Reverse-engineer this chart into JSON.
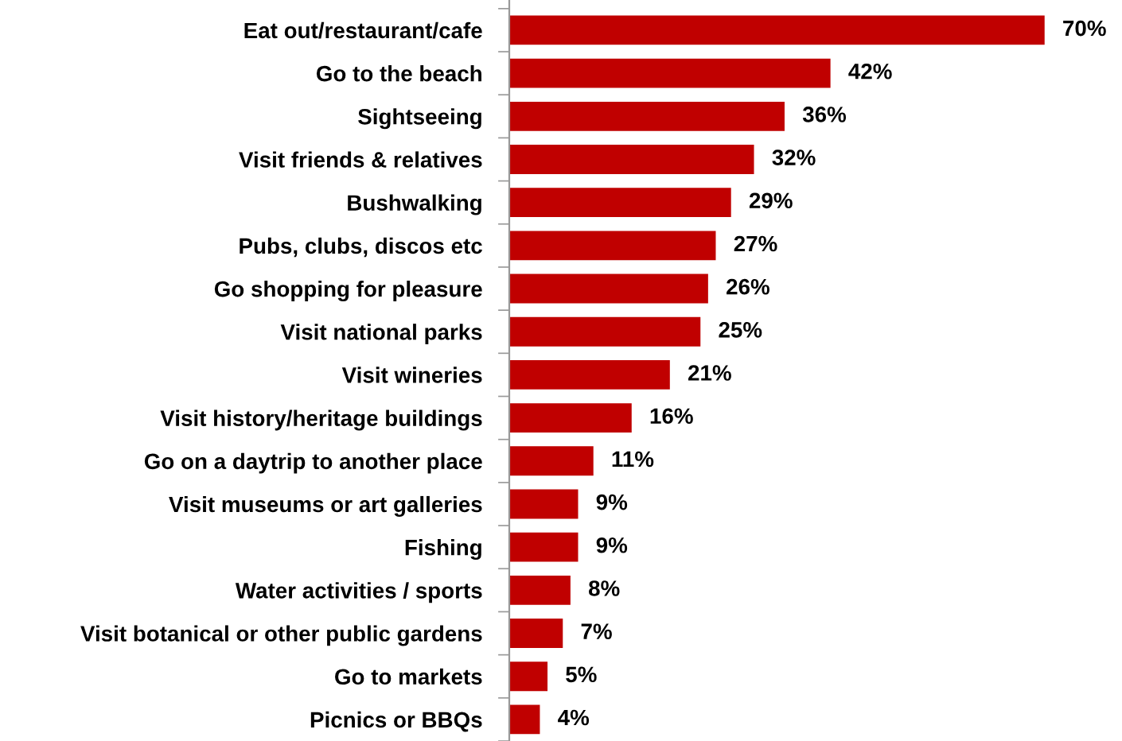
{
  "chart_data": {
    "type": "bar",
    "orientation": "horizontal",
    "categories": [
      "Eat out/restaurant/cafe",
      "Go to the beach",
      "Sightseeing",
      "Visit friends & relatives",
      "Bushwalking",
      "Pubs, clubs, discos etc",
      "Go shopping for pleasure",
      "Visit national parks",
      "Visit wineries",
      "Visit history/heritage buildings",
      "Go on a daytrip to another place",
      "Visit museums or art galleries",
      "Fishing",
      "Water activities / sports",
      "Visit botanical or other public gardens",
      "Go to markets",
      "Picnics or BBQs"
    ],
    "values": [
      70,
      42,
      36,
      32,
      29,
      27,
      26,
      25,
      21,
      16,
      11,
      9,
      9,
      8,
      7,
      5,
      4
    ],
    "value_labels": [
      "70%",
      "42%",
      "36%",
      "32%",
      "29%",
      "27%",
      "26%",
      "25%",
      "21%",
      "16%",
      "11%",
      "9%",
      "9%",
      "8%",
      "7%",
      "5%",
      "4%"
    ],
    "color": "#c00000",
    "grid": false,
    "legend": false
  }
}
